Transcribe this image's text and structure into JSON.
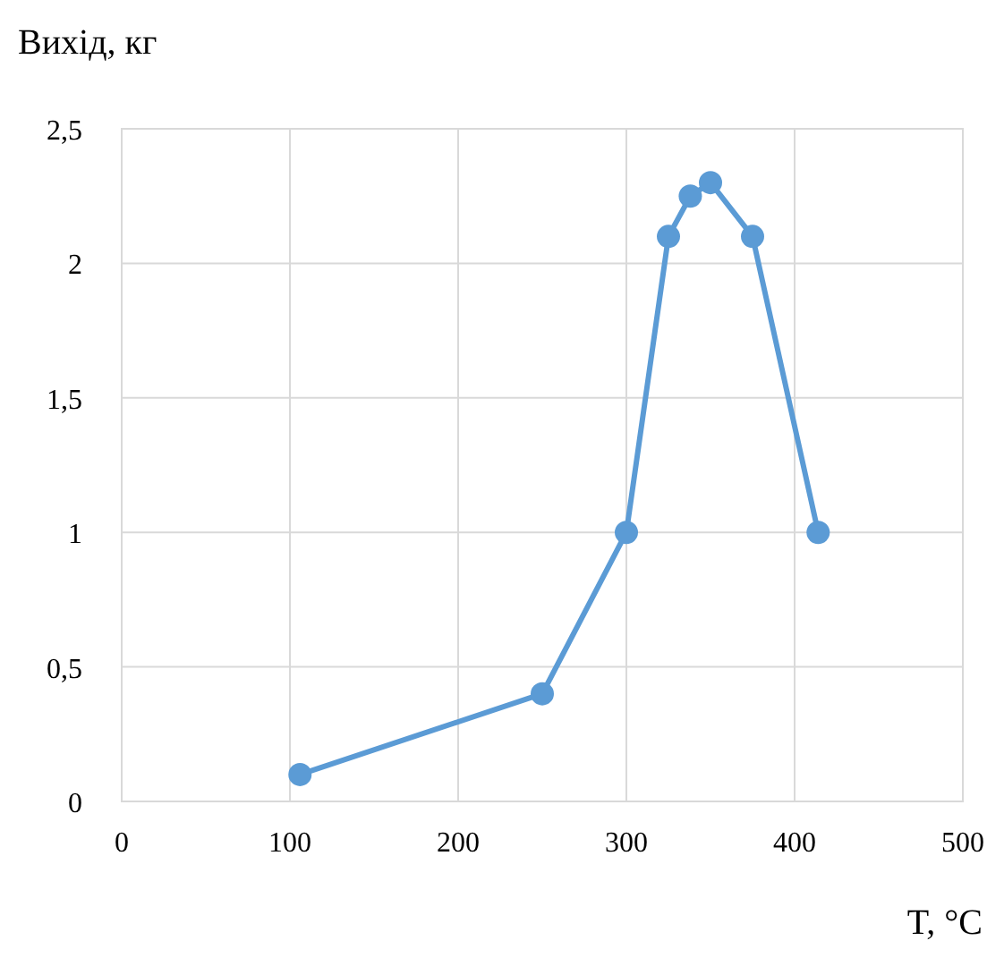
{
  "chart_data": {
    "type": "line",
    "xlabel": "T, °C",
    "ylabel": "Вихід, кг",
    "series": [
      {
        "color": "#5b9bd5",
        "x": [
          106,
          250,
          300,
          325,
          338,
          350,
          375,
          414
        ],
        "values": [
          0.1,
          0.4,
          1,
          2.1,
          2.25,
          2.3,
          2.1,
          1
        ]
      }
    ],
    "xlim": [
      0,
      500
    ],
    "xticks": [
      0,
      100,
      200,
      300,
      400,
      500
    ],
    "ylim": [
      0,
      2.5
    ],
    "yticks": [
      0,
      {
        "value": 0.5,
        "label": "0,5"
      },
      1,
      {
        "value": 1.5,
        "label": "1,5"
      },
      2,
      {
        "value": 2.5,
        "label": "2,5"
      }
    ],
    "grid": true,
    "marker": "circle",
    "line_style": "solid"
  }
}
